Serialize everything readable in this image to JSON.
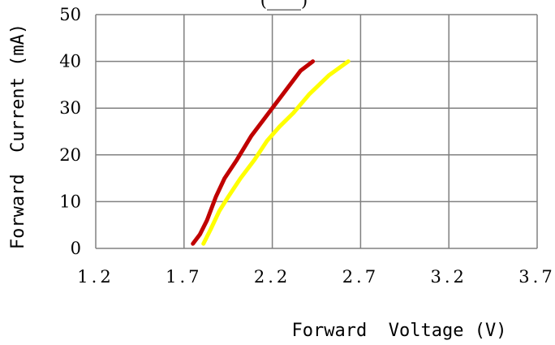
{
  "chart_data": {
    "type": "line",
    "title": "",
    "title_fragment": "(____)",
    "xlabel": "Forward  Voltage (V)",
    "ylabel": "Forward  Current (mA)",
    "xlim": [
      1.2,
      3.7
    ],
    "ylim": [
      0,
      50
    ],
    "x_ticks": [
      1.2,
      1.7,
      2.2,
      2.7,
      3.2,
      3.7
    ],
    "x_tick_labels": [
      "1.2",
      "1.7",
      "2.2",
      "2.7",
      "3.2",
      "3.7"
    ],
    "y_ticks": [
      0,
      10,
      20,
      30,
      40,
      50
    ],
    "y_tick_labels": [
      "0",
      "10",
      "20",
      "30",
      "40",
      "50"
    ],
    "grid": true,
    "legend": "none",
    "series": [
      {
        "color": "#C00000",
        "x": [
          1.75,
          1.79,
          1.83,
          1.88,
          1.93,
          2.0,
          2.08,
          2.16,
          2.24,
          2.3,
          2.36,
          2.43
        ],
        "y": [
          1,
          3,
          6,
          11,
          15,
          19,
          24,
          28,
          32,
          35,
          38,
          40
        ]
      },
      {
        "color": "#FFFF00",
        "x": [
          1.81,
          1.85,
          1.9,
          1.95,
          2.02,
          2.1,
          2.17,
          2.24,
          2.32,
          2.41,
          2.52,
          2.63
        ],
        "y": [
          1,
          4,
          8,
          11,
          15,
          19,
          23,
          26,
          29,
          33,
          37,
          40
        ]
      }
    ]
  }
}
